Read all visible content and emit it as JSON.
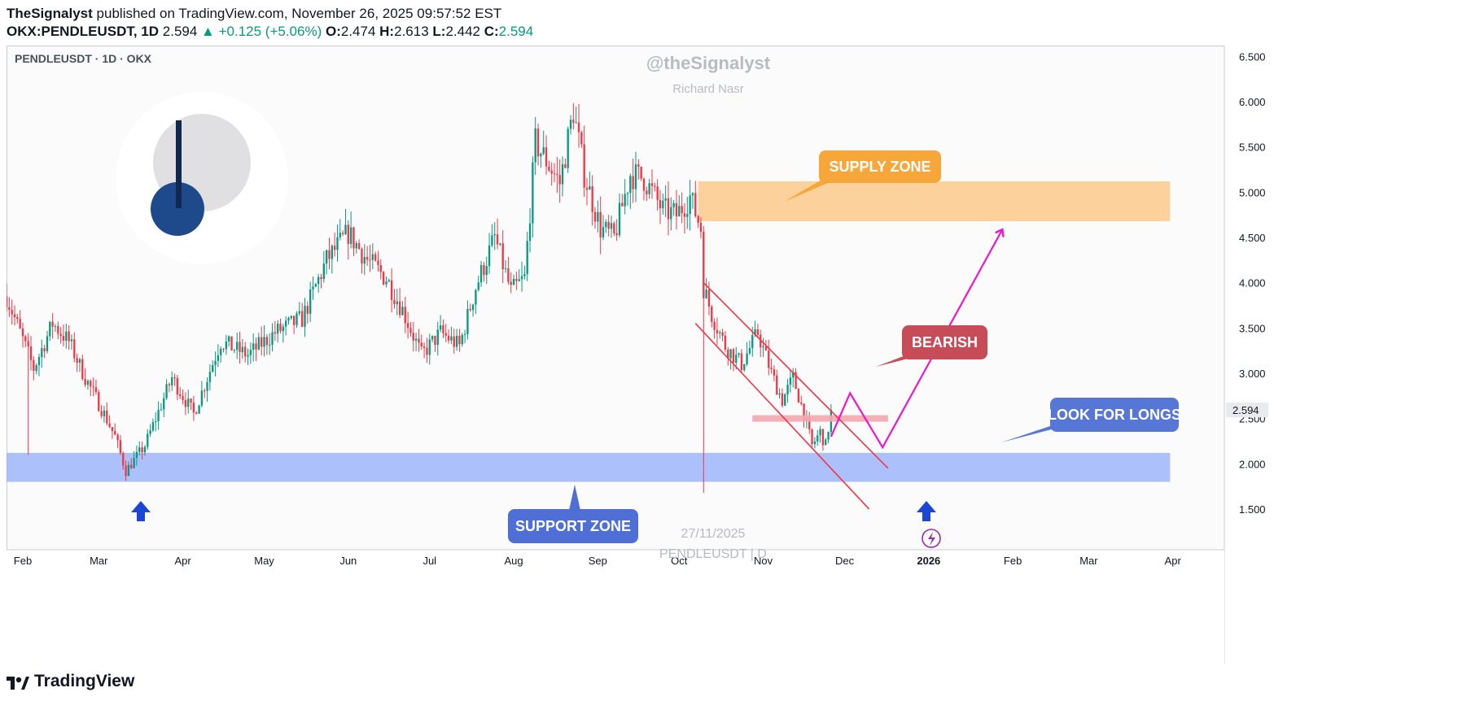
{
  "header": {
    "author": "TheSignalyst",
    "published_text": "published on TradingView.com, November 26, 2025 09:57:52 EST",
    "symbol_line": "OKX:PENDLEUSDT, 1D",
    "last": "2.594",
    "change": "▲ +0.125 (+5.06%)",
    "o_label": "O:",
    "o": "2.474",
    "h_label": "H:",
    "h": "2.613",
    "l_label": "L:",
    "l": "2.442",
    "c_label": "C:",
    "c": "2.594"
  },
  "chart_title": "PENDLEUSDT · 1D · OKX",
  "watermark": {
    "handle": "@theSignalyst",
    "name": "Richard Nasr",
    "date": "27/11/2025",
    "symbol": "PENDLEUSDT | D"
  },
  "footer": {
    "brand": "TradingView"
  },
  "colors": {
    "up": "#089981",
    "down": "#f23645",
    "supply": "#fbc98a",
    "supply_label": "#f7a73a",
    "support": "#9db5fb",
    "support_label": "#4f6fd6",
    "bearish_label": "#c64d57",
    "longs_label": "#5677d6",
    "magenta": "#ee16cf",
    "resistance_line": "#f4a7ad"
  },
  "chart_data": {
    "type": "candlestick",
    "title": "PENDLEUSDT · 1D · OKX",
    "x_ticks": [
      "Feb",
      "Mar",
      "Apr",
      "May",
      "Jun",
      "Jul",
      "Aug",
      "Sep",
      "Oct",
      "Nov",
      "Dec",
      "2026",
      "Feb",
      "Mar",
      "Apr"
    ],
    "y_ticks": [
      "6.500",
      "6.000",
      "5.500",
      "5.000",
      "4.500",
      "4.000",
      "3.500",
      "3.000",
      "2.500",
      "2.000",
      "1.500"
    ],
    "ylim": [
      1.05,
      6.62
    ],
    "last_price": "2.594",
    "price_path": [
      [
        "2025-01-26",
        3.85
      ],
      [
        "2025-02-05",
        3.05
      ],
      [
        "2025-02-12",
        3.55
      ],
      [
        "2025-02-18",
        3.35
      ],
      [
        "2025-02-24",
        2.95
      ],
      [
        "2025-03-03",
        2.55
      ],
      [
        "2025-03-07",
        2.3
      ],
      [
        "2025-03-11",
        1.92
      ],
      [
        "2025-03-18",
        2.2
      ],
      [
        "2025-03-28",
        2.95
      ],
      [
        "2025-04-05",
        2.55
      ],
      [
        "2025-04-15",
        3.35
      ],
      [
        "2025-04-25",
        3.2
      ],
      [
        "2025-05-05",
        3.45
      ],
      [
        "2025-05-15",
        3.6
      ],
      [
        "2025-05-24",
        4.25
      ],
      [
        "2025-06-01",
        4.55
      ],
      [
        "2025-06-08",
        4.25
      ],
      [
        "2025-06-15",
        4.05
      ],
      [
        "2025-06-21",
        3.7
      ],
      [
        "2025-06-28",
        3.2
      ],
      [
        "2025-07-05",
        3.45
      ],
      [
        "2025-07-12",
        3.3
      ],
      [
        "2025-07-18",
        3.95
      ],
      [
        "2025-07-25",
        4.5
      ],
      [
        "2025-07-31",
        3.9
      ],
      [
        "2025-08-05",
        4.05
      ],
      [
        "2025-08-09",
        5.55
      ],
      [
        "2025-08-14",
        5.3
      ],
      [
        "2025-08-18",
        5.1
      ],
      [
        "2025-08-23",
        5.9
      ],
      [
        "2025-08-27",
        5.2
      ],
      [
        "2025-09-02",
        4.6
      ],
      [
        "2025-09-07",
        4.5
      ],
      [
        "2025-09-13",
        5.2
      ],
      [
        "2025-09-18",
        5.15
      ],
      [
        "2025-09-25",
        4.8
      ],
      [
        "2025-09-30",
        4.75
      ],
      [
        "2025-10-05",
        4.95
      ],
      [
        "2025-10-09",
        4.6
      ],
      [
        "2025-10-10",
        3.95
      ],
      [
        "2025-10-13",
        3.65
      ],
      [
        "2025-10-18",
        3.3
      ],
      [
        "2025-10-24",
        3.1
      ],
      [
        "2025-10-30",
        3.45
      ],
      [
        "2025-11-04",
        3.0
      ],
      [
        "2025-11-08",
        2.7
      ],
      [
        "2025-11-12",
        2.95
      ],
      [
        "2025-11-16",
        2.55
      ],
      [
        "2025-11-19",
        2.2
      ],
      [
        "2025-11-22",
        2.35
      ],
      [
        "2025-11-24",
        2.2
      ],
      [
        "2025-11-26",
        2.59
      ]
    ],
    "zones": [
      {
        "label": "SUPPLY ZONE",
        "from": 4.68,
        "to": 5.12,
        "start": "2025-10-08",
        "end": "2026-03-31"
      },
      {
        "label": "SUPPORT ZONE",
        "from": 1.8,
        "to": 2.12,
        "start": "2025-01-26",
        "end": "2026-03-31"
      }
    ],
    "resistance_level": {
      "price": 2.5,
      "start": "2025-10-28",
      "end": "2025-12-17"
    },
    "channel": {
      "upper": [
        [
          "2025-10-10",
          4.0
        ],
        [
          "2025-12-17",
          1.95
        ]
      ],
      "lower": [
        [
          "2025-10-07",
          3.55
        ],
        [
          "2025-12-10",
          1.5
        ]
      ]
    },
    "projection": [
      [
        "2025-11-26",
        2.3
      ],
      [
        "2025-12-03",
        2.78
      ],
      [
        "2025-12-15",
        2.18
      ],
      [
        "2026-01-28",
        4.58
      ]
    ],
    "annotations": [
      "SUPPLY ZONE",
      "BEARISH",
      "LOOK FOR LONGS",
      "SUPPORT ZONE"
    ]
  }
}
